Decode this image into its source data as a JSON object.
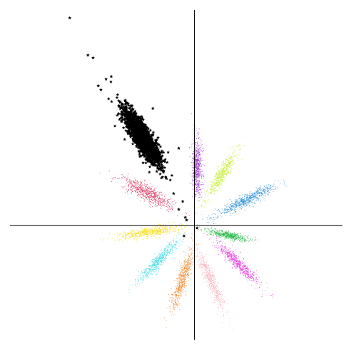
{
  "chart_data": {
    "type": "scatter",
    "title": "",
    "xlabel": "",
    "ylabel": "",
    "xlim": [
      -7.1,
      5.7
    ],
    "ylim": [
      -4.3,
      8.1
    ],
    "grid": false,
    "legend": "none",
    "axes_through_origin": true,
    "outlier_series": {
      "marker": "star",
      "color": "#000000",
      "points": [
        [
          -4.8,
          7.8
        ],
        [
          -4.1,
          6.4
        ],
        [
          -3.9,
          6.3
        ],
        [
          -3.4,
          5.5
        ],
        [
          -3.6,
          5.1
        ],
        [
          -3.7,
          5.25
        ],
        [
          -3.2,
          5.6
        ],
        [
          -2.4,
          4.5
        ],
        [
          -2.2,
          3.6
        ],
        [
          -1.6,
          4.4
        ],
        [
          -1.4,
          3.3
        ],
        [
          -0.6,
          2.9
        ],
        [
          -0.8,
          1.2
        ],
        [
          -0.45,
          0.9
        ],
        [
          -0.6,
          0.6
        ],
        [
          -0.3,
          0.2
        ],
        [
          -0.4,
          -0.4
        ],
        [
          0.1,
          -0.1
        ],
        [
          -0.35,
          0.3
        ]
      ]
    },
    "series": [
      {
        "color": "#000000",
        "marker": "star",
        "center": [
          -2.0,
          3.3
        ],
        "long_axis": [
          1.8,
          -2.9
        ],
        "long_sd": 0.6,
        "short_sd": 0.16,
        "count": 1800
      },
      {
        "color": "#9b30c9",
        "marker": "dot",
        "center": [
          0.1,
          2.2
        ],
        "long_axis": [
          0.0,
          1.0
        ],
        "long_sd": 0.55,
        "short_sd": 0.1,
        "count": 600
      },
      {
        "color": "#c6ee3c",
        "marker": "dot",
        "center": [
          1.05,
          1.9
        ],
        "long_axis": [
          0.55,
          0.84
        ],
        "long_sd": 0.55,
        "short_sd": 0.1,
        "count": 600
      },
      {
        "color": "#2a8fd8",
        "marker": "dot",
        "center": [
          2.0,
          0.95
        ],
        "long_axis": [
          0.9,
          0.45
        ],
        "long_sd": 0.62,
        "short_sd": 0.1,
        "count": 600
      },
      {
        "color": "#dc2d5a",
        "marker": "dot",
        "center": [
          -1.8,
          1.2
        ],
        "long_axis": [
          0.88,
          -0.48
        ],
        "long_sd": 0.55,
        "short_sd": 0.14,
        "count": 600
      },
      {
        "color": "#f5dc1e",
        "marker": "dot",
        "center": [
          -1.75,
          -0.25
        ],
        "long_axis": [
          0.99,
          0.14
        ],
        "long_sd": 0.6,
        "short_sd": 0.09,
        "count": 600
      },
      {
        "color": "#2cb84a",
        "marker": "dot",
        "center": [
          1.3,
          -0.37
        ],
        "long_axis": [
          0.98,
          -0.2
        ],
        "long_sd": 0.38,
        "short_sd": 0.07,
        "count": 500
      },
      {
        "color": "#4fdde8",
        "marker": "dot",
        "center": [
          -1.4,
          -1.35
        ],
        "long_axis": [
          0.7,
          0.71
        ],
        "long_sd": 0.55,
        "short_sd": 0.1,
        "count": 600
      },
      {
        "color": "#e63ee0",
        "marker": "dot",
        "center": [
          1.7,
          -1.45
        ],
        "long_axis": [
          0.73,
          -0.68
        ],
        "long_sd": 0.55,
        "short_sd": 0.1,
        "count": 600
      },
      {
        "color": "#f08c32",
        "marker": "dot",
        "center": [
          -0.45,
          -2.0
        ],
        "long_axis": [
          0.32,
          0.95
        ],
        "long_sd": 0.6,
        "short_sd": 0.1,
        "count": 600
      },
      {
        "color": "#f7b5bf",
        "marker": "dot",
        "center": [
          0.65,
          -2.1
        ],
        "long_axis": [
          0.42,
          -0.91
        ],
        "long_sd": 0.65,
        "short_sd": 0.1,
        "count": 600
      }
    ]
  }
}
